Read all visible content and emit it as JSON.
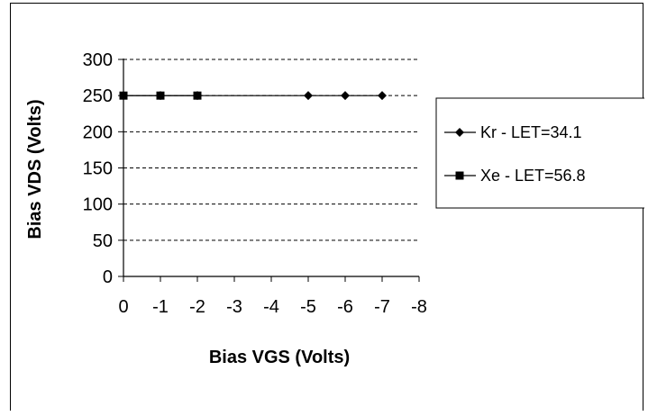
{
  "chart_data": {
    "type": "line",
    "xlabel": "Bias VGS (Volts)",
    "ylabel": "Bias VDS (Volts)",
    "xlim": [
      0,
      -8
    ],
    "ylim": [
      0,
      300
    ],
    "x_ticks": [
      "0",
      "-1",
      "-2",
      "-3",
      "-4",
      "-5",
      "-6",
      "-7",
      "-8"
    ],
    "y_ticks": [
      "0",
      "50",
      "100",
      "150",
      "200",
      "250",
      "300"
    ],
    "grid": "horizontal dashed",
    "legend": "right",
    "series": [
      {
        "name": "Kr - LET=34.1",
        "marker": "diamond",
        "x": [
          0,
          -1,
          -2,
          -5,
          -6,
          -7
        ],
        "y": [
          250,
          250,
          250,
          250,
          250,
          250
        ]
      },
      {
        "name": "Xe - LET=56.8",
        "marker": "square",
        "x": [
          0,
          -1,
          -2
        ],
        "y": [
          250,
          250,
          250
        ]
      }
    ],
    "colors": {
      "line": "#000000",
      "grid": "#000000",
      "background": "#ffffff"
    }
  }
}
